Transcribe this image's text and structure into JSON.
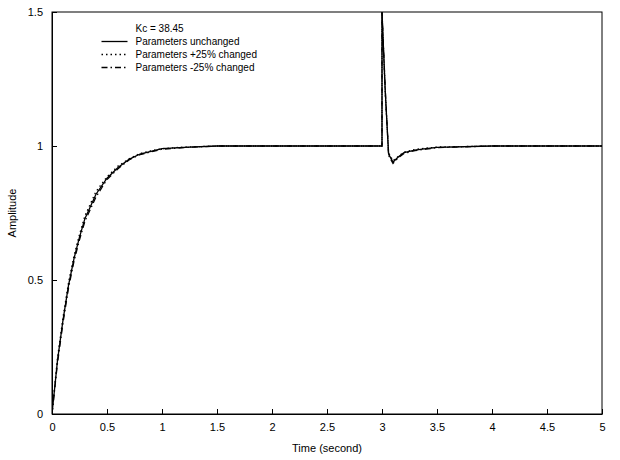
{
  "chart_data": {
    "type": "line",
    "annotations": [
      "Kc = 38.45"
    ],
    "xlabel": "Time (second)",
    "ylabel": "Amplitude",
    "x": [
      0,
      0.05,
      0.1,
      0.15,
      0.2,
      0.25,
      0.3,
      0.4,
      0.5,
      0.6,
      0.7,
      0.8,
      0.9,
      1.0,
      1.2,
      1.5,
      2.0,
      2.5,
      3.0,
      3.0,
      3.03,
      3.06,
      3.1,
      3.15,
      3.2,
      3.3,
      3.4,
      3.5,
      4.0,
      4.5,
      5.0
    ],
    "series": [
      {
        "name": "Parameters unchanged",
        "color": "#000000",
        "line_style": "solid",
        "values": [
          0,
          0.2,
          0.35,
          0.48,
          0.58,
          0.66,
          0.73,
          0.82,
          0.88,
          0.92,
          0.95,
          0.97,
          0.98,
          0.99,
          0.995,
          1.0,
          1.0,
          1.0,
          1.0,
          1.5,
          1.2,
          0.97,
          0.94,
          0.96,
          0.975,
          0.985,
          0.99,
          0.995,
          1.0,
          1.0,
          1.0
        ]
      },
      {
        "name": "Parameters +25% changed",
        "color": "#000000",
        "line_style": "dotted",
        "values": [
          0,
          0.21,
          0.36,
          0.49,
          0.59,
          0.67,
          0.74,
          0.83,
          0.885,
          0.925,
          0.952,
          0.972,
          0.982,
          0.99,
          0.996,
          1.0,
          1.0,
          1.0,
          1.0,
          1.5,
          1.19,
          0.975,
          0.945,
          0.962,
          0.977,
          0.987,
          0.992,
          0.996,
          1.0,
          1.0,
          1.0
        ]
      },
      {
        "name": "Parameters -25% changed",
        "color": "#000000",
        "line_style": "dashdot",
        "values": [
          0,
          0.19,
          0.34,
          0.47,
          0.57,
          0.65,
          0.72,
          0.81,
          0.875,
          0.915,
          0.948,
          0.968,
          0.978,
          0.988,
          0.994,
          1.0,
          1.0,
          1.0,
          1.0,
          1.5,
          1.21,
          0.965,
          0.935,
          0.957,
          0.972,
          0.983,
          0.988,
          0.994,
          1.0,
          1.0,
          1.0
        ]
      }
    ],
    "xlim": [
      0,
      5
    ],
    "ylim": [
      0,
      1.5
    ],
    "xticks": [
      0,
      0.5,
      1,
      1.5,
      2,
      2.5,
      3,
      3.5,
      4,
      4.5,
      5
    ],
    "yticks": [
      0,
      0.5,
      1,
      1.5
    ],
    "legend": "upper left",
    "grid": false
  }
}
